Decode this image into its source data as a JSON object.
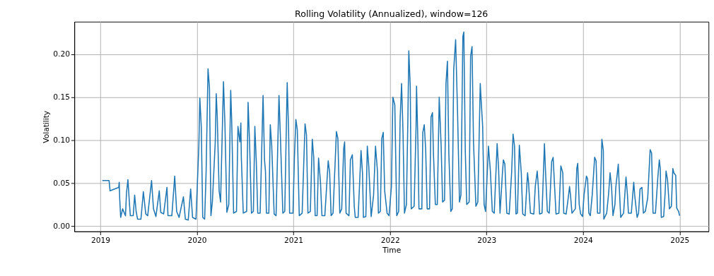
{
  "chart_data": {
    "type": "line",
    "title": "Rolling Volatility (Annualized), window=126",
    "xlabel": "Time",
    "ylabel": "Volatility",
    "xlim": [
      2018.73,
      2025.3
    ],
    "xticks": [
      2019,
      2020,
      2021,
      2022,
      2023,
      2024,
      2025
    ],
    "ylim": [
      -0.0063,
      0.238
    ],
    "yticks": [
      {
        "value": 0,
        "label": "0.00"
      },
      {
        "value": 0.05,
        "label": "0.05"
      },
      {
        "value": 0.1,
        "label": "0.10"
      },
      {
        "value": 0.15,
        "label": "0.15"
      },
      {
        "value": 0.2,
        "label": "0.20"
      }
    ],
    "grid": true,
    "marker": "none",
    "line_style": "solid",
    "series": [
      {
        "color": "#1f77b4",
        "x": [
          2019.02,
          2019.09,
          2019.1,
          2019.19,
          2019.195,
          2019.2,
          2019.21,
          2019.23,
          2019.26,
          2019.27,
          2019.285,
          2019.3,
          2019.31,
          2019.34,
          2019.355,
          2019.37,
          2019.385,
          2019.42,
          2019.445,
          2019.47,
          2019.49,
          2019.53,
          2019.55,
          2019.575,
          2019.61,
          2019.625,
          2019.655,
          2019.69,
          2019.7,
          2019.74,
          2019.77,
          2019.79,
          2019.815,
          2019.86,
          2019.88,
          2019.91,
          2019.935,
          2019.955,
          2019.99,
          2020.02,
          2020.03,
          2020.045,
          2020.06,
          2020.08,
          2020.095,
          2020.115,
          2020.13,
          2020.145,
          2020.16,
          2020.19,
          2020.2,
          2020.21,
          2020.23,
          2020.245,
          2020.275,
          2020.29,
          2020.31,
          2020.33,
          2020.35,
          2020.36,
          2020.38,
          2020.41,
          2020.425,
          2020.445,
          2020.455,
          2020.46,
          2020.48,
          2020.515,
          2020.53,
          2020.545,
          2020.565,
          2020.585,
          2020.6,
          2020.615,
          2020.63,
          2020.655,
          2020.685,
          2020.7,
          2020.71,
          2020.72,
          2020.745,
          2020.76,
          2020.775,
          2020.8,
          2020.82,
          2020.85,
          2020.865,
          2020.89,
          2020.91,
          2020.935,
          2020.95,
          2020.96,
          2020.995,
          2021.01,
          2021.025,
          2021.04,
          2021.06,
          2021.09,
          2021.12,
          2021.135,
          2021.15,
          2021.175,
          2021.195,
          2021.21,
          2021.225,
          2021.245,
          2021.26,
          2021.28,
          2021.295,
          2021.325,
          2021.36,
          2021.375,
          2021.39,
          2021.41,
          2021.445,
          2021.46,
          2021.48,
          2021.5,
          2021.52,
          2021.53,
          2021.545,
          2021.575,
          2021.59,
          2021.61,
          2021.63,
          2021.64,
          2021.67,
          2021.7,
          2021.715,
          2021.725,
          2021.75,
          2021.765,
          2021.78,
          2021.805,
          2021.83,
          2021.85,
          2021.87,
          2021.88,
          2021.9,
          2021.915,
          2021.93,
          2021.945,
          2021.97,
          2021.99,
          2022.015,
          2022.03,
          2022.05,
          2022.07,
          2022.09,
          2022.105,
          2022.12,
          2022.135,
          2022.15,
          2022.17,
          2022.185,
          2022.195,
          2022.21,
          2022.22,
          2022.25,
          2022.27,
          2022.275,
          2022.29,
          2022.3,
          2022.33,
          2022.34,
          2022.355,
          2022.37,
          2022.385,
          2022.41,
          2022.425,
          2022.44,
          2022.45,
          2022.47,
          2022.49,
          2022.51,
          2022.53,
          2022.545,
          2022.565,
          2022.58,
          2022.595,
          2022.61,
          2022.63,
          2022.645,
          2022.66,
          2022.68,
          2022.7,
          2022.72,
          2022.735,
          2022.755,
          2022.765,
          2022.78,
          2022.795,
          2022.82,
          2022.835,
          2022.85,
          2022.865,
          2022.89,
          2022.91,
          2022.935,
          2022.945,
          2022.96,
          2022.975,
          2022.99,
          2023.02,
          2023.04,
          2023.06,
          2023.08,
          2023.11,
          2023.125,
          2023.14,
          2023.165,
          2023.175,
          2023.19,
          2023.21,
          2023.235,
          2023.26,
          2023.275,
          2023.29,
          2023.305,
          2023.32,
          2023.34,
          2023.36,
          2023.375,
          2023.4,
          2023.425,
          2023.435,
          2023.455,
          2023.49,
          2023.505,
          2023.525,
          2023.535,
          2023.55,
          2023.575,
          2023.6,
          2023.61,
          2023.63,
          2023.65,
          2023.675,
          2023.69,
          2023.705,
          2023.72,
          2023.75,
          2023.77,
          2023.79,
          2023.8,
          2023.825,
          2023.85,
          2023.86,
          2023.87,
          2023.885,
          2023.92,
          2023.935,
          2023.945,
          2023.96,
          2023.975,
          2023.995,
          2024.01,
          2024.035,
          2024.047,
          2024.06,
          2024.075,
          2024.095,
          2024.12,
          2024.135,
          2024.15,
          2024.175,
          2024.195,
          2024.21,
          2024.215,
          2024.245,
          2024.265,
          2024.28,
          2024.295,
          2024.31,
          2024.33,
          2024.34,
          2024.365,
          2024.375,
          2024.39,
          2024.42,
          2024.445,
          2024.46,
          2024.47,
          2024.5,
          2024.525,
          2024.535,
          2024.56,
          2024.575,
          2024.59,
          2024.61,
          2024.625,
          2024.645,
          2024.67,
          2024.695,
          2024.71,
          2024.725,
          2024.75,
          2024.775,
          2024.79,
          2024.8,
          2024.81,
          2024.835,
          2024.85,
          2024.86,
          2024.875,
          2024.895,
          2024.915,
          2024.93,
          2024.94,
          2024.96,
          2024.97,
          2024.99,
          2025.0
        ],
        "values": [
          0.053,
          0.053,
          0.041,
          0.045,
          0.051,
          0.032,
          0.01,
          0.02,
          0.012,
          0.038,
          0.054,
          0.028,
          0.012,
          0.012,
          0.036,
          0.017,
          0.008,
          0.008,
          0.04,
          0.014,
          0.012,
          0.053,
          0.02,
          0.011,
          0.041,
          0.016,
          0.014,
          0.045,
          0.012,
          0.012,
          0.058,
          0.017,
          0.01,
          0.034,
          0.008,
          0.007,
          0.043,
          0.01,
          0.008,
          0.093,
          0.149,
          0.116,
          0.01,
          0.008,
          0.062,
          0.183,
          0.161,
          0.012,
          0.028,
          0.098,
          0.154,
          0.129,
          0.041,
          0.028,
          0.168,
          0.119,
          0.016,
          0.025,
          0.158,
          0.123,
          0.015,
          0.017,
          0.116,
          0.098,
          0.12,
          0.08,
          0.015,
          0.017,
          0.144,
          0.098,
          0.015,
          0.017,
          0.116,
          0.075,
          0.015,
          0.015,
          0.152,
          0.077,
          0.064,
          0.015,
          0.015,
          0.118,
          0.093,
          0.014,
          0.012,
          0.152,
          0.103,
          0.015,
          0.017,
          0.167,
          0.109,
          0.015,
          0.015,
          0.08,
          0.124,
          0.112,
          0.012,
          0.015,
          0.119,
          0.106,
          0.015,
          0.017,
          0.101,
          0.08,
          0.012,
          0.012,
          0.079,
          0.051,
          0.012,
          0.012,
          0.076,
          0.062,
          0.012,
          0.015,
          0.11,
          0.102,
          0.015,
          0.02,
          0.09,
          0.098,
          0.015,
          0.012,
          0.077,
          0.083,
          0.023,
          0.01,
          0.01,
          0.088,
          0.062,
          0.01,
          0.011,
          0.093,
          0.07,
          0.011,
          0.036,
          0.093,
          0.064,
          0.015,
          0.017,
          0.102,
          0.109,
          0.041,
          0.015,
          0.012,
          0.046,
          0.15,
          0.141,
          0.012,
          0.017,
          0.124,
          0.166,
          0.109,
          0.015,
          0.025,
          0.122,
          0.204,
          0.162,
          0.02,
          0.023,
          0.115,
          0.163,
          0.093,
          0.02,
          0.02,
          0.109,
          0.118,
          0.088,
          0.02,
          0.02,
          0.127,
          0.132,
          0.085,
          0.025,
          0.025,
          0.15,
          0.093,
          0.028,
          0.03,
          0.166,
          0.192,
          0.083,
          0.017,
          0.02,
          0.182,
          0.217,
          0.132,
          0.028,
          0.036,
          0.221,
          0.226,
          0.088,
          0.025,
          0.028,
          0.198,
          0.209,
          0.098,
          0.023,
          0.028,
          0.166,
          0.145,
          0.116,
          0.025,
          0.017,
          0.093,
          0.064,
          0.017,
          0.015,
          0.096,
          0.067,
          0.015,
          0.062,
          0.077,
          0.072,
          0.015,
          0.014,
          0.062,
          0.107,
          0.093,
          0.014,
          0.015,
          0.094,
          0.062,
          0.014,
          0.012,
          0.062,
          0.051,
          0.015,
          0.014,
          0.046,
          0.064,
          0.049,
          0.014,
          0.015,
          0.096,
          0.067,
          0.017,
          0.015,
          0.075,
          0.08,
          0.046,
          0.014,
          0.015,
          0.07,
          0.062,
          0.015,
          0.014,
          0.036,
          0.046,
          0.036,
          0.015,
          0.02,
          0.067,
          0.073,
          0.025,
          0.014,
          0.011,
          0.036,
          0.058,
          0.055,
          0.015,
          0.012,
          0.036,
          0.08,
          0.076,
          0.015,
          0.015,
          0.101,
          0.088,
          0.008,
          0.015,
          0.038,
          0.062,
          0.046,
          0.012,
          0.025,
          0.046,
          0.072,
          0.046,
          0.01,
          0.015,
          0.057,
          0.036,
          0.015,
          0.015,
          0.051,
          0.036,
          0.01,
          0.015,
          0.043,
          0.045,
          0.015,
          0.017,
          0.033,
          0.089,
          0.085,
          0.015,
          0.015,
          0.057,
          0.077,
          0.067,
          0.01,
          0.011,
          0.038,
          0.064,
          0.054,
          0.02,
          0.023,
          0.067,
          0.062,
          0.059,
          0.021,
          0.017,
          0.012
        ]
      }
    ]
  }
}
